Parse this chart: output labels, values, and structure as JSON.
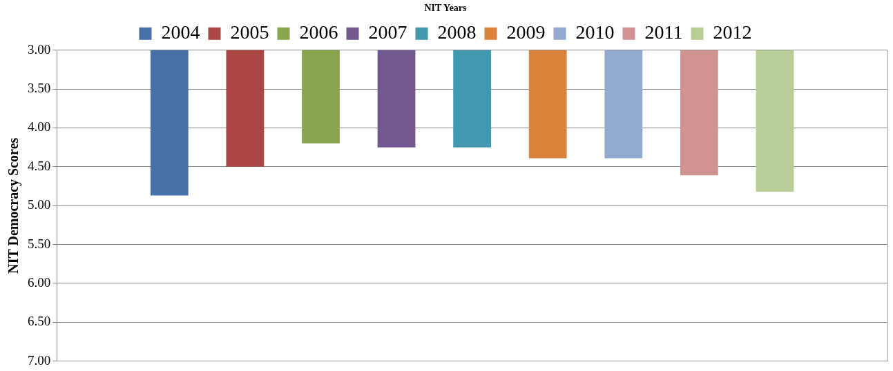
{
  "chart_data": {
    "type": "bar",
    "title": "NIT Years",
    "ylabel": "NIT Democracy Scores",
    "categories": [
      null
    ],
    "series": [
      {
        "name": "2004",
        "color": "#4571a8",
        "values": [
          4.87
        ]
      },
      {
        "name": "2005",
        "color": "#aa4643",
        "values": [
          4.5
        ]
      },
      {
        "name": "2006",
        "color": "#89a54e",
        "values": [
          4.2
        ]
      },
      {
        "name": "2007",
        "color": "#71588f",
        "values": [
          4.25
        ]
      },
      {
        "name": "2008",
        "color": "#4198af",
        "values": [
          4.25
        ]
      },
      {
        "name": "2009",
        "color": "#db843d",
        "values": [
          4.39
        ]
      },
      {
        "name": "2010",
        "color": "#93a9cf",
        "values": [
          4.39
        ]
      },
      {
        "name": "2011",
        "color": "#d19392",
        "values": [
          4.61
        ]
      },
      {
        "name": "2012",
        "color": "#b9cd96",
        "values": [
          4.82
        ]
      }
    ],
    "ylim": [
      7,
      3
    ],
    "yticks": [
      {
        "value": 3,
        "label": "3.00"
      },
      {
        "value": 3.5,
        "label": "3.50"
      },
      {
        "value": 4,
        "label": "4.00"
      },
      {
        "value": 4.5,
        "label": "4.50"
      },
      {
        "value": 5,
        "label": "5.00"
      },
      {
        "value": 5.5,
        "label": "5.50"
      },
      {
        "value": 6,
        "label": "6.00"
      },
      {
        "value": 6.5,
        "label": "6.50"
      },
      {
        "value": 7,
        "label": "7.00"
      }
    ],
    "grid": "y",
    "legend": "top",
    "tick_labels": "y"
  }
}
